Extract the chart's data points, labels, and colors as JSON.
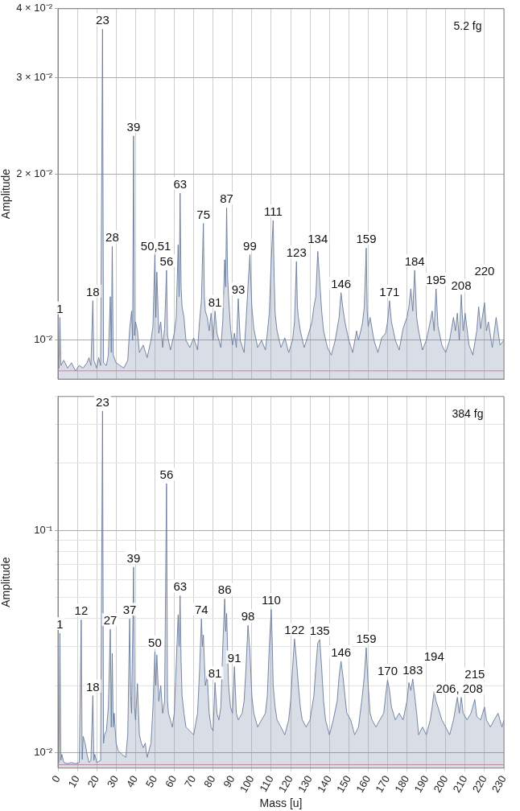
{
  "chart_data": [
    {
      "type": "area",
      "ylabel": "Amplitude",
      "log": "y",
      "grid": true,
      "legend": false,
      "marker": "none",
      "tick_labels": "y",
      "xlim": [
        0,
        230
      ],
      "xticks": [
        0,
        10,
        20,
        30,
        40,
        50,
        60,
        70,
        80,
        90,
        100,
        110,
        120,
        130,
        140,
        150,
        160,
        170,
        180,
        190,
        200,
        210,
        220,
        230
      ],
      "ylim": [
        0.0085,
        0.04
      ],
      "yticks": [
        {
          "value": 0.01,
          "label": "10⁻²"
        },
        {
          "value": 0.02,
          "label": "2 × 10⁻²"
        },
        {
          "value": 0.03,
          "label": "3 × 10⁻²"
        },
        {
          "value": 0.04,
          "label": "4 × 10⁻²"
        }
      ],
      "ref_lines": [
        {
          "axis": "y",
          "value": 0.0088,
          "color": "#d88ca2"
        }
      ],
      "series": [
        {
          "color": "#687b9c",
          "x": [
            0,
            0.5,
            1,
            1.5,
            3,
            5,
            7,
            9,
            11,
            13,
            15,
            16,
            17,
            18,
            18.5,
            20,
            21,
            22,
            23,
            23.5,
            25,
            26,
            27,
            27.5,
            28,
            28.5,
            30,
            32,
            34,
            36,
            37,
            38,
            38.5,
            39,
            39.5,
            40,
            41,
            42,
            44,
            46,
            48,
            49,
            50,
            50.5,
            51,
            52,
            53,
            54,
            55,
            56,
            56.5,
            58,
            60,
            61,
            62,
            62.5,
            63,
            63.5,
            64,
            65,
            66,
            68,
            70,
            72,
            73,
            74,
            75,
            75.5,
            76,
            77,
            78,
            79,
            80,
            81,
            82,
            84,
            85,
            86,
            86.5,
            87,
            87.5,
            88,
            89,
            90,
            91,
            92,
            93,
            94,
            96,
            97,
            98,
            99,
            99.5,
            100,
            101,
            103,
            105,
            107,
            108,
            109,
            110,
            111,
            111.5,
            112,
            113,
            115,
            117,
            119,
            121,
            122,
            123,
            123.5,
            124,
            125,
            127,
            129,
            131,
            132,
            133,
            134,
            135,
            136,
            137,
            139,
            141,
            143,
            145,
            146,
            147,
            148,
            150,
            152,
            154,
            155,
            157,
            158,
            159,
            159.5,
            160,
            161,
            163,
            165,
            167,
            169,
            170,
            171,
            172,
            174,
            176,
            178,
            180,
            181,
            182,
            183,
            184,
            185,
            186,
            188,
            190,
            192,
            193,
            194,
            195,
            196,
            198,
            200,
            202,
            204,
            205,
            206,
            207,
            208,
            209,
            210,
            212,
            214,
            216,
            217,
            218,
            220,
            221,
            222,
            224,
            226,
            228,
            230
          ],
          "values": [
            0.0091,
            0.0089,
            0.011,
            0.009,
            0.0092,
            0.0089,
            0.0091,
            0.0088,
            0.009,
            0.0089,
            0.0091,
            0.0093,
            0.009,
            0.0118,
            0.0092,
            0.0089,
            0.0093,
            0.009,
            0.0367,
            0.0091,
            0.009,
            0.0094,
            0.012,
            0.0095,
            0.0148,
            0.0094,
            0.0091,
            0.009,
            0.0089,
            0.0092,
            0.0105,
            0.0113,
            0.01,
            0.0235,
            0.0102,
            0.0108,
            0.0104,
            0.0095,
            0.0098,
            0.0093,
            0.01,
            0.0106,
            0.0143,
            0.011,
            0.0133,
            0.0103,
            0.0108,
            0.0097,
            0.0105,
            0.0134,
            0.0102,
            0.0096,
            0.0103,
            0.011,
            0.0149,
            0.012,
            0.0185,
            0.0125,
            0.0115,
            0.011,
            0.01,
            0.0097,
            0.0101,
            0.0096,
            0.0108,
            0.0118,
            0.0163,
            0.012,
            0.0113,
            0.011,
            0.0104,
            0.0112,
            0.01,
            0.0113,
            0.0103,
            0.0097,
            0.0108,
            0.014,
            0.0125,
            0.0174,
            0.013,
            0.012,
            0.0105,
            0.0098,
            0.0103,
            0.0097,
            0.0119,
            0.01,
            0.0095,
            0.0108,
            0.0125,
            0.0143,
            0.0128,
            0.0115,
            0.0105,
            0.0097,
            0.01,
            0.0096,
            0.0103,
            0.0112,
            0.014,
            0.0165,
            0.013,
            0.0112,
            0.0104,
            0.0097,
            0.0101,
            0.0095,
            0.01,
            0.0108,
            0.0139,
            0.0115,
            0.011,
            0.0104,
            0.0097,
            0.0102,
            0.0108,
            0.0115,
            0.012,
            0.0145,
            0.0128,
            0.0113,
            0.0104,
            0.0097,
            0.0094,
            0.01,
            0.011,
            0.0122,
            0.0114,
            0.0108,
            0.01,
            0.0095,
            0.0104,
            0.01,
            0.0107,
            0.0115,
            0.0147,
            0.0113,
            0.0106,
            0.011,
            0.01,
            0.0095,
            0.0101,
            0.0103,
            0.0108,
            0.0118,
            0.0108,
            0.01,
            0.0096,
            0.0105,
            0.011,
            0.0115,
            0.0124,
            0.0113,
            0.0134,
            0.011,
            0.0104,
            0.0096,
            0.01,
            0.0108,
            0.0113,
            0.0104,
            0.0124,
            0.0106,
            0.0098,
            0.0095,
            0.01,
            0.011,
            0.0104,
            0.0112,
            0.01,
            0.0121,
            0.0104,
            0.0112,
            0.0098,
            0.0094,
            0.0104,
            0.0115,
            0.0105,
            0.0117,
            0.0104,
            0.0108,
            0.0097,
            0.011,
            0.0098,
            0.01
          ]
        }
      ],
      "annotations": [
        "5.2 fg",
        {
          "text": "1",
          "x": 1,
          "y": 0.011
        },
        {
          "text": "18",
          "x": 18,
          "y": 0.0118
        },
        {
          "text": "23",
          "x": 23,
          "y": 0.0367
        },
        {
          "text": "28",
          "x": 28,
          "y": 0.0148
        },
        {
          "text": "39",
          "x": 39,
          "y": 0.0235
        },
        {
          "text": "50,51",
          "x": 50.5,
          "y": 0.0143
        },
        {
          "text": "56",
          "x": 56,
          "y": 0.0134
        },
        {
          "text": "63",
          "x": 63,
          "y": 0.0185
        },
        {
          "text": "75",
          "x": 75,
          "y": 0.0163
        },
        {
          "text": "81",
          "x": 81,
          "y": 0.0113
        },
        {
          "text": "87",
          "x": 87,
          "y": 0.0174
        },
        {
          "text": "93",
          "x": 93,
          "y": 0.0119
        },
        {
          "text": "99",
          "x": 99,
          "y": 0.0143
        },
        {
          "text": "111",
          "x": 111,
          "y": 0.0165
        },
        {
          "text": "123",
          "x": 123,
          "y": 0.0139
        },
        {
          "text": "134",
          "x": 134,
          "y": 0.0145
        },
        {
          "text": "146",
          "x": 146,
          "y": 0.0122
        },
        {
          "text": "159",
          "x": 159,
          "y": 0.0147
        },
        {
          "text": "171",
          "x": 171,
          "y": 0.0118
        },
        {
          "text": "184",
          "x": 184,
          "y": 0.0134
        },
        {
          "text": "195",
          "x": 195,
          "y": 0.0124
        },
        {
          "text": "208",
          "x": 208,
          "y": 0.0121
        },
        {
          "text": "220",
          "x": 220,
          "y": 0.0117
        }
      ]
    },
    {
      "type": "area",
      "xlabel": "Mass [u]",
      "ylabel": "Amplitude",
      "log": "y",
      "grid": true,
      "legend": false,
      "marker": "none",
      "xlim": [
        0,
        230
      ],
      "xticks": [
        0,
        10,
        20,
        30,
        40,
        50,
        60,
        70,
        80,
        90,
        100,
        110,
        120,
        130,
        140,
        150,
        160,
        170,
        180,
        190,
        200,
        210,
        220,
        230
      ],
      "ylim": [
        0.0085,
        0.4
      ],
      "yticks": [
        {
          "value": 0.01,
          "label": "10⁻²"
        },
        {
          "value": 0.02,
          "label": null
        },
        {
          "value": 0.03,
          "label": null
        },
        {
          "value": 0.04,
          "label": null
        },
        {
          "value": 0.05,
          "label": null
        },
        {
          "value": 0.06,
          "label": null
        },
        {
          "value": 0.07,
          "label": null
        },
        {
          "value": 0.08,
          "label": null
        },
        {
          "value": 0.09,
          "label": null
        },
        {
          "value": 0.1,
          "label": "10⁻¹"
        },
        {
          "value": 0.2,
          "label": null
        },
        {
          "value": 0.3,
          "label": null
        },
        {
          "value": 0.4,
          "label": null
        }
      ],
      "ref_lines": [
        {
          "axis": "y",
          "value": 0.0088,
          "color": "#d88ca2"
        }
      ],
      "series": [
        {
          "color": "#687b9c",
          "x": [
            0,
            0.5,
            1,
            1.5,
            2,
            3,
            5,
            7,
            9,
            11,
            12,
            12.5,
            13,
            14,
            15,
            16,
            17,
            18,
            18.5,
            19,
            20,
            21,
            22,
            23,
            23.5,
            24,
            25,
            26,
            27,
            27.5,
            28,
            28.5,
            29,
            30,
            31,
            33,
            35,
            36,
            37,
            37.5,
            38,
            39,
            39.5,
            40,
            41,
            42,
            43,
            44,
            45,
            46,
            48,
            49,
            50,
            50.5,
            51,
            52,
            53,
            54,
            55,
            56,
            56.5,
            57,
            58,
            59,
            60,
            61,
            62,
            62.5,
            63,
            63.5,
            64,
            65,
            66,
            68,
            70,
            72,
            73,
            74,
            74.5,
            75,
            76,
            77,
            78,
            79,
            80,
            81,
            82,
            83,
            84,
            85,
            86,
            86.5,
            87,
            88,
            89,
            90,
            91,
            92,
            93,
            95,
            96,
            97,
            98,
            99,
            100,
            101,
            103,
            105,
            107,
            108,
            109,
            110,
            110.5,
            111,
            112,
            113,
            115,
            117,
            119,
            120,
            121,
            122,
            123,
            124,
            125,
            126,
            128,
            130,
            132,
            133,
            134,
            135,
            136,
            137,
            138,
            140,
            142,
            144,
            145,
            146,
            147,
            148,
            149,
            151,
            153,
            155,
            157,
            158,
            159,
            160,
            161,
            162,
            164,
            166,
            168,
            169,
            170,
            171,
            172,
            174,
            176,
            178,
            180,
            181,
            182,
            183,
            184,
            185,
            186,
            188,
            190,
            192,
            193,
            194,
            195,
            196,
            198,
            200,
            202,
            204,
            206,
            207,
            208,
            209,
            211,
            213,
            215,
            216,
            218,
            220,
            221,
            223,
            225,
            227,
            229,
            230
          ],
          "values": [
            0.0089,
            0.009,
            0.0344,
            0.0092,
            0.0098,
            0.009,
            0.0089,
            0.009,
            0.0089,
            0.009,
            0.0395,
            0.0093,
            0.0118,
            0.011,
            0.0098,
            0.009,
            0.0092,
            0.018,
            0.0092,
            0.0098,
            0.009,
            0.0091,
            0.0092,
            0.344,
            0.011,
            0.012,
            0.0125,
            0.016,
            0.0358,
            0.013,
            0.0279,
            0.013,
            0.015,
            0.011,
            0.0102,
            0.0098,
            0.0095,
            0.012,
            0.0399,
            0.018,
            0.015,
            0.0683,
            0.016,
            0.014,
            0.0204,
            0.012,
            0.011,
            0.0105,
            0.011,
            0.0095,
            0.011,
            0.016,
            0.0284,
            0.02,
            0.0275,
            0.017,
            0.02,
            0.015,
            0.017,
            0.162,
            0.017,
            0.015,
            0.014,
            0.013,
            0.015,
            0.025,
            0.0416,
            0.03,
            0.0507,
            0.026,
            0.018,
            0.015,
            0.013,
            0.0125,
            0.012,
            0.015,
            0.023,
            0.0399,
            0.03,
            0.0338,
            0.02,
            0.0221,
            0.015,
            0.013,
            0.0125,
            0.0206,
            0.015,
            0.014,
            0.016,
            0.0296,
            0.0491,
            0.035,
            0.0423,
            0.02,
            0.016,
            0.015,
            0.0243,
            0.015,
            0.014,
            0.015,
            0.017,
            0.024,
            0.0373,
            0.0286,
            0.018,
            0.015,
            0.013,
            0.014,
            0.015,
            0.018,
            0.03,
            0.044,
            0.032,
            0.02,
            0.016,
            0.014,
            0.013,
            0.012,
            0.014,
            0.017,
            0.024,
            0.0324,
            0.026,
            0.02,
            0.016,
            0.014,
            0.013,
            0.014,
            0.018,
            0.024,
            0.031,
            0.0322,
            0.024,
            0.017,
            0.014,
            0.012,
            0.014,
            0.017,
            0.022,
            0.0257,
            0.022,
            0.018,
            0.015,
            0.014,
            0.012,
            0.013,
            0.018,
            0.022,
            0.0296,
            0.02,
            0.015,
            0.014,
            0.013,
            0.014,
            0.015,
            0.018,
            0.0212,
            0.019,
            0.016,
            0.014,
            0.015,
            0.014,
            0.017,
            0.0206,
            0.019,
            0.0214,
            0.018,
            0.015,
            0.012,
            0.013,
            0.012,
            0.014,
            0.016,
            0.0188,
            0.017,
            0.016,
            0.014,
            0.013,
            0.012,
            0.014,
            0.0177,
            0.015,
            0.0177,
            0.015,
            0.014,
            0.015,
            0.0173,
            0.0145,
            0.014,
            0.016,
            0.014,
            0.013,
            0.014,
            0.015,
            0.013,
            0.014
          ]
        }
      ],
      "annotations": [
        "384 fg",
        {
          "text": "1",
          "x": 1,
          "y": 0.0344
        },
        {
          "text": "12",
          "x": 12,
          "y": 0.0395
        },
        {
          "text": "18",
          "x": 18,
          "y": 0.018
        },
        {
          "text": "23",
          "x": 23,
          "y": 0.344
        },
        {
          "text": "27",
          "x": 27,
          "y": 0.0358
        },
        {
          "text": "37",
          "x": 37,
          "y": 0.0399
        },
        {
          "text": "39",
          "x": 39,
          "y": 0.0683
        },
        {
          "text": "50",
          "x": 50,
          "y": 0.0284
        },
        {
          "text": "56",
          "x": 56,
          "y": 0.162
        },
        {
          "text": "63",
          "x": 63,
          "y": 0.0507
        },
        {
          "text": "74",
          "x": 74,
          "y": 0.0399
        },
        {
          "text": "81",
          "x": 81,
          "y": 0.0206
        },
        {
          "text": "86",
          "x": 86,
          "y": 0.0491
        },
        {
          "text": "91",
          "x": 91,
          "y": 0.0243
        },
        {
          "text": "98",
          "x": 98,
          "y": 0.0373
        },
        {
          "text": "110",
          "x": 110,
          "y": 0.044
        },
        {
          "text": "122",
          "x": 122,
          "y": 0.0324
        },
        {
          "text": "135",
          "x": 135,
          "y": 0.0322
        },
        {
          "text": "146",
          "x": 146,
          "y": 0.0257
        },
        {
          "text": "159",
          "x": 159,
          "y": 0.0296
        },
        {
          "text": "170",
          "x": 170,
          "y": 0.0212
        },
        {
          "text": "183",
          "x": 183,
          "y": 0.0214
        },
        {
          "text": "194",
          "x": 194,
          "y": 0.0188
        },
        {
          "text": "206, 208",
          "x": 207,
          "y": 0.0177
        },
        {
          "text": "215",
          "x": 215,
          "y": 0.0173
        }
      ]
    }
  ]
}
